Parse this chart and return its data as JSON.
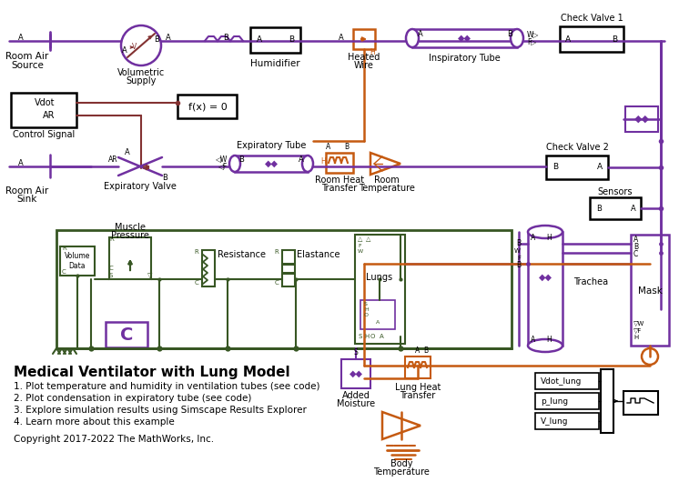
{
  "title": "Medical Ventilator with Lung Model",
  "bg_color": "#ffffff",
  "text_color": "#000000",
  "purple": "#7030A0",
  "orange": "#C55A11",
  "dark_red": "#833232",
  "green": "#375623",
  "black": "#000000",
  "caption_lines": [
    "1. Plot temperature and humidity in ventilation tubes (see code)",
    "2. Plot condensation in expiratory tube (see code)",
    "3. Explore simulation results using Simscape Results Explorer",
    "4. Learn more about this example"
  ],
  "copyright": "Copyright 2017-2022 The MathWorks, Inc.",
  "figsize": [
    7.46,
    5.3
  ],
  "dpi": 100
}
